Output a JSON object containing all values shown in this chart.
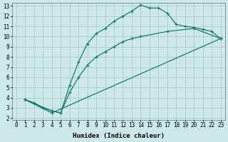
{
  "xlabel": "Humidex (Indice chaleur)",
  "ylabel": "",
  "xlim": [
    -0.5,
    23.5
  ],
  "ylim": [
    1.8,
    13.3
  ],
  "xticks": [
    0,
    1,
    2,
    3,
    4,
    5,
    6,
    7,
    8,
    9,
    10,
    11,
    12,
    13,
    14,
    15,
    16,
    17,
    18,
    19,
    20,
    21,
    22,
    23
  ],
  "yticks": [
    2,
    3,
    4,
    5,
    6,
    7,
    8,
    9,
    10,
    11,
    12,
    13
  ],
  "bg_color": "#cce8e8",
  "grid_color": "#aacccc",
  "line_color": "#1a7a6e",
  "line1_x": [
    1,
    2,
    3,
    4,
    5,
    6,
    7,
    8,
    9,
    10,
    11,
    12,
    13,
    14,
    15,
    16,
    17,
    18,
    19,
    20,
    21,
    22,
    23
  ],
  "line1_y": [
    3.8,
    3.5,
    3.0,
    2.7,
    2.5,
    5.2,
    7.5,
    9.3,
    10.3,
    10.8,
    11.5,
    12.0,
    12.5,
    13.1,
    12.8,
    12.8,
    12.3,
    11.2,
    11.0,
    10.9,
    10.7,
    10.5,
    9.8
  ],
  "line2_x": [
    1,
    4,
    23
  ],
  "line2_y": [
    3.8,
    2.5,
    9.8
  ],
  "line3_x": [
    1,
    4,
    5,
    6,
    7,
    8,
    9,
    10,
    11,
    12,
    13,
    14,
    17,
    20,
    23
  ],
  "line3_y": [
    3.8,
    2.7,
    2.5,
    4.5,
    6.0,
    7.2,
    8.0,
    8.5,
    9.0,
    9.5,
    9.8,
    10.0,
    10.5,
    10.8,
    9.8
  ]
}
